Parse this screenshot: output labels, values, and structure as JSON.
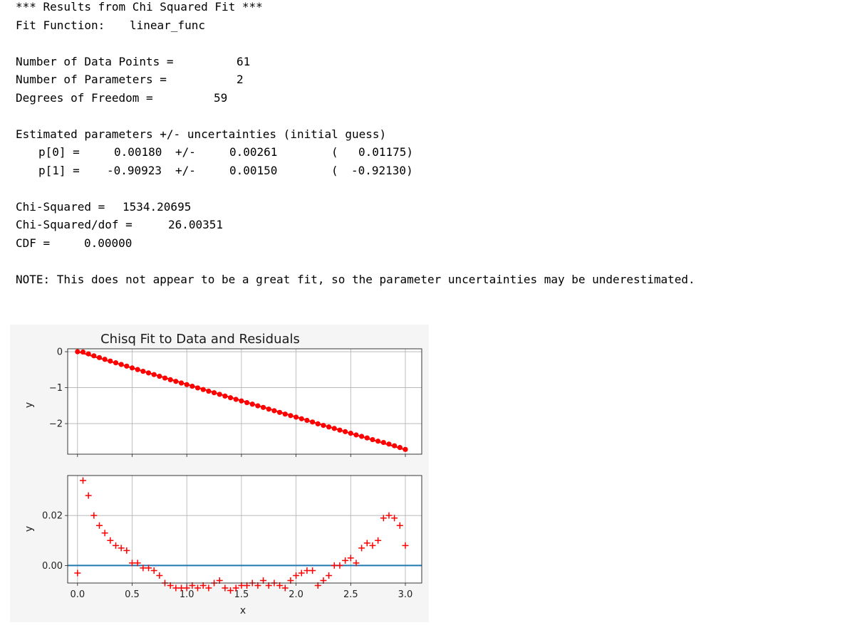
{
  "output": {
    "header": "*** Results from Chi Squared Fit ***",
    "fit_function_label": "Fit Function:",
    "fit_function_value": "linear_func",
    "n_points_label": "Number of Data Points =",
    "n_points_value": "61",
    "n_params_label": "Number of Parameters =",
    "n_params_value": "2",
    "dof_label": "Degrees of Freedom =",
    "dof_value": "59",
    "params_header": "Estimated parameters +/- uncertainties (initial guess)",
    "params": [
      {
        "name": "p[0] =",
        "value": "0.00180",
        "pm": "+/-",
        "unc": "0.00261",
        "open": "(",
        "guess": "0.01175)"
      },
      {
        "name": "p[1] =",
        "value": "-0.90923",
        "pm": "+/-",
        "unc": "0.00150",
        "open": "(",
        "guess": "-0.92130)"
      }
    ],
    "chisq_label": "Chi-Squared =",
    "chisq_value": "1534.20695",
    "chisq_dof_label": "Chi-Squared/dof =",
    "chisq_dof_value": "26.00351",
    "cdf_label": "CDF =",
    "cdf_value": "0.00000",
    "note": "NOTE: This does not appear to be a great fit, so the parameter uncertainties may be underestimated."
  },
  "chart_data": [
    {
      "type": "scatter",
      "title": "Chisq Fit to Data and Residuals",
      "xlabel": "",
      "ylabel": "y",
      "xlim": [
        -0.09,
        3.15
      ],
      "ylim": [
        -2.85,
        0.08
      ],
      "yticks": [
        "0",
        "−1",
        "−2"
      ],
      "ytick_values": [
        0,
        -1,
        -2
      ],
      "xticks": [
        0.0,
        0.5,
        1.0,
        1.5,
        2.0,
        2.5,
        3.0
      ],
      "grid": true,
      "marker_color": "#ff0000",
      "line_color": "#ff0000",
      "fit": {
        "p0": 0.0018,
        "p1": -0.90923
      },
      "x_range": [
        0.0,
        3.0
      ],
      "n_points": 61
    },
    {
      "type": "scatter",
      "title": "",
      "xlabel": "x",
      "ylabel": "y",
      "xlim": [
        -0.09,
        3.15
      ],
      "ylim": [
        -0.007,
        0.036
      ],
      "yticks": [
        "0.02",
        "0.00"
      ],
      "ytick_values": [
        0.02,
        0.0
      ],
      "xticks": [
        0.0,
        0.5,
        1.0,
        1.5,
        2.0,
        2.5,
        3.0
      ],
      "xtick_labels": [
        "0.0",
        "0.5",
        "1.0",
        "1.5",
        "2.0",
        "2.5",
        "3.0"
      ],
      "grid": true,
      "marker_color": "#ff0000",
      "zero_line_color": "#1f77b4",
      "x": [
        0.0,
        0.05,
        0.1,
        0.15,
        0.2,
        0.25,
        0.3,
        0.35,
        0.4,
        0.45,
        0.5,
        0.55,
        0.6,
        0.65,
        0.7,
        0.75,
        0.8,
        0.85,
        0.9,
        0.95,
        1.0,
        1.05,
        1.1,
        1.15,
        1.2,
        1.25,
        1.3,
        1.35,
        1.4,
        1.45,
        1.5,
        1.55,
        1.6,
        1.65,
        1.7,
        1.75,
        1.8,
        1.85,
        1.9,
        1.95,
        2.0,
        2.05,
        2.1,
        2.15,
        2.2,
        2.25,
        2.3,
        2.35,
        2.4,
        2.45,
        2.5,
        2.55,
        2.6,
        2.65,
        2.7,
        2.75,
        2.8,
        2.85,
        2.9,
        2.95,
        3.0
      ],
      "residuals": [
        -0.003,
        0.034,
        0.028,
        0.02,
        0.016,
        0.013,
        0.01,
        0.008,
        0.007,
        0.006,
        0.001,
        0.001,
        -0.001,
        -0.001,
        -0.002,
        -0.004,
        -0.007,
        -0.008,
        -0.009,
        -0.009,
        -0.009,
        -0.008,
        -0.009,
        -0.008,
        -0.009,
        -0.007,
        -0.006,
        -0.009,
        -0.01,
        -0.009,
        -0.008,
        -0.008,
        -0.007,
        -0.008,
        -0.006,
        -0.008,
        -0.007,
        -0.008,
        -0.009,
        -0.006,
        -0.004,
        -0.003,
        -0.002,
        -0.002,
        -0.008,
        -0.006,
        -0.004,
        0.0,
        0.0,
        0.002,
        0.003,
        0.001,
        0.007,
        0.009,
        0.008,
        0.01,
        0.019,
        0.02,
        0.019,
        0.016,
        0.008
      ]
    }
  ]
}
